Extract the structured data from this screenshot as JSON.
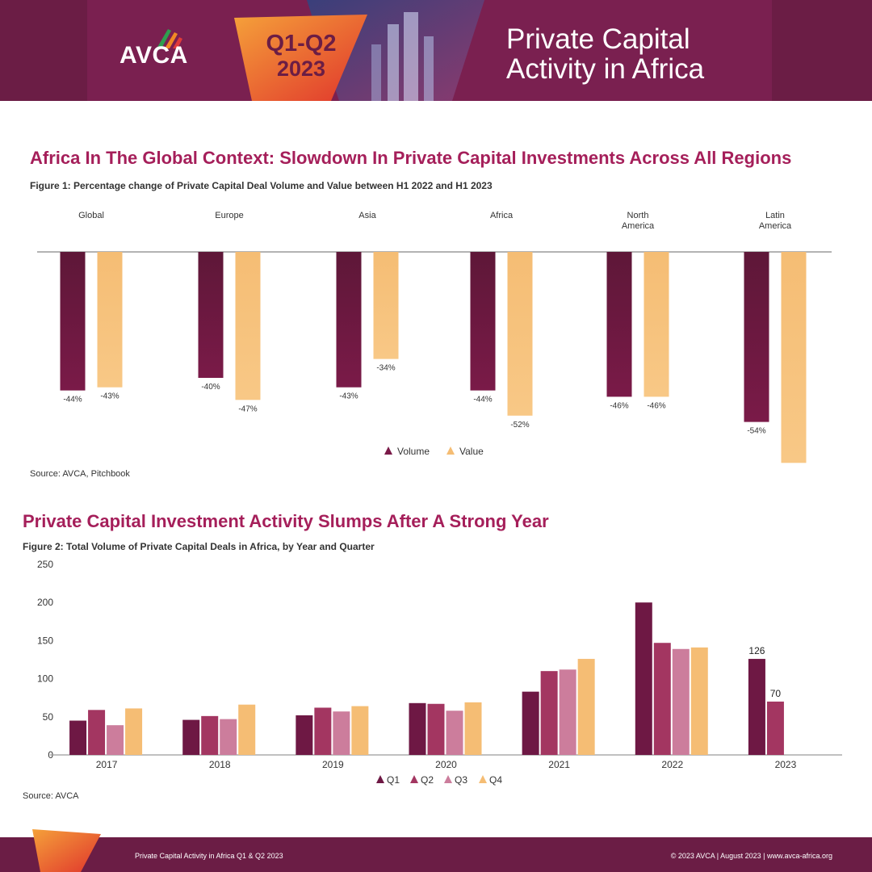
{
  "header": {
    "logo_text": "AVCA",
    "badge_line1": "Q1-Q2",
    "badge_line2": "2023",
    "title_line1": "Private Capital",
    "title_line2": "Activity in Africa"
  },
  "section1": {
    "title": "Africa In The Global Context: Slowdown In Private Capital Investments Across All Regions",
    "caption": "Figure 1: Percentage change of Private Capital Deal Volume and Value between H1 2022 and H1 2023",
    "source": "Source: AVCA, Pitchbook"
  },
  "section2": {
    "title": "Private Capital Investment Activity Slumps After A Strong Year",
    "caption": "Figure 2: Total Volume of Private Capital Deals in Africa, by Year and Quarter",
    "source": "Source: AVCA"
  },
  "footer": {
    "left": "Private Capital Activity in Africa Q1 & Q2 2023",
    "right": "© 2023 AVCA  |  August 2023  |  www.avca-africa.org"
  },
  "colors": {
    "header_bg": "#6b1d45",
    "title_color": "#a51f5a",
    "volume": "#7a1a48",
    "value": "#f5bd74",
    "q1": "#6e1844",
    "q2": "#a33661",
    "q3": "#cc7d9c",
    "q4": "#f5bd74"
  },
  "chart_data": [
    {
      "type": "bar",
      "categories": [
        [
          "Global"
        ],
        [
          "Europe"
        ],
        [
          "Asia"
        ],
        [
          "Africa"
        ],
        [
          "North",
          "America"
        ],
        [
          "Latin",
          "America"
        ]
      ],
      "series": [
        {
          "name": "Volume",
          "values": [
            -44,
            -40,
            -43,
            -44,
            -46,
            -54
          ]
        },
        {
          "name": "Value",
          "values": [
            -43,
            -47,
            -34,
            -52,
            -46,
            -67
          ]
        }
      ],
      "value_suffix": "%",
      "ylim": [
        -70,
        0
      ],
      "legend": "bottom-center"
    },
    {
      "type": "bar",
      "categories": [
        "2017",
        "2018",
        "2019",
        "2020",
        "2021",
        "2022",
        "2023"
      ],
      "series": [
        {
          "name": "Q1",
          "values": [
            45,
            46,
            52,
            68,
            83,
            200,
            126
          ]
        },
        {
          "name": "Q2",
          "values": [
            59,
            51,
            62,
            67,
            110,
            147,
            70
          ]
        },
        {
          "name": "Q3",
          "values": [
            39,
            47,
            57,
            58,
            112,
            139,
            null
          ]
        },
        {
          "name": "Q4",
          "values": [
            61,
            66,
            64,
            69,
            126,
            141,
            null
          ]
        }
      ],
      "data_labels": {
        "2023": [
          "126",
          "70"
        ]
      },
      "yticks": [
        0,
        50,
        100,
        150,
        200,
        250
      ],
      "ylim": [
        0,
        250
      ],
      "legend": "bottom-center"
    }
  ]
}
